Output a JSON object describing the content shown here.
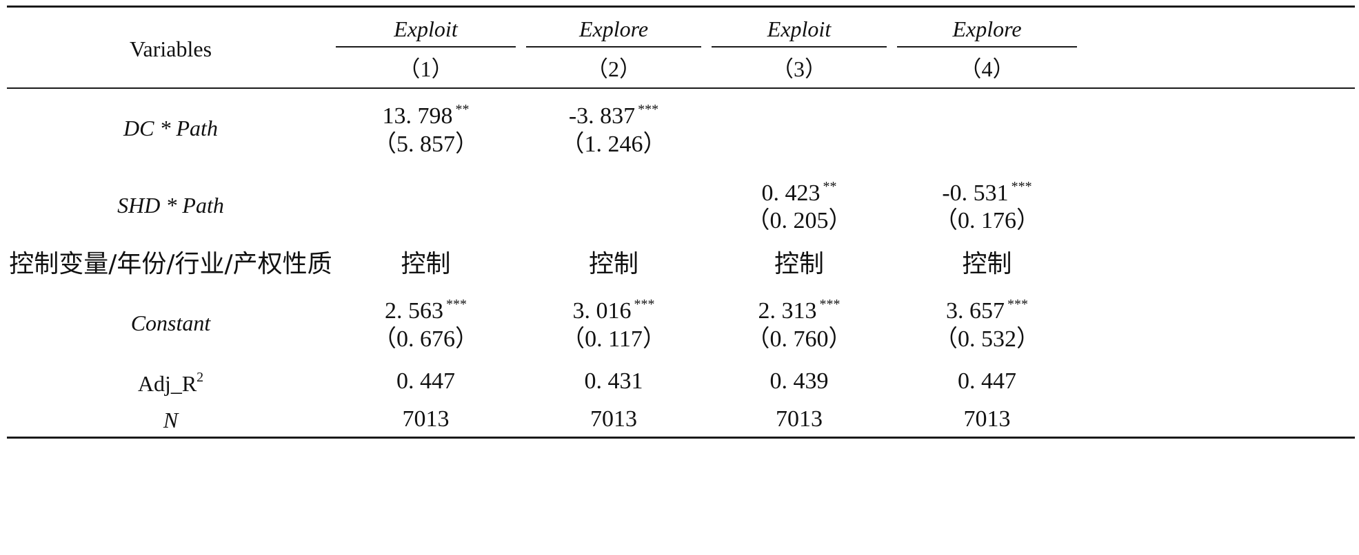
{
  "header": {
    "variables_label": "Variables",
    "groups": [
      "Exploit",
      "Explore",
      "Exploit",
      "Explore"
    ],
    "col_numbers": [
      "（1）",
      "（2）",
      "（3）",
      "（4）"
    ]
  },
  "rows": {
    "dc_path": {
      "label": "DC * Path",
      "coef": [
        "13. 798",
        "-3. 837",
        "",
        ""
      ],
      "stars": [
        "**",
        "***",
        "",
        ""
      ],
      "se": [
        "（5. 857）",
        "（1. 246）",
        "",
        ""
      ]
    },
    "shd_path": {
      "label": "SHD * Path",
      "coef": [
        "",
        "",
        "0. 423",
        "-0. 531"
      ],
      "stars": [
        "",
        "",
        "**",
        "***"
      ],
      "se": [
        "",
        "",
        "（0. 205）",
        "（0. 176）"
      ]
    },
    "controls": {
      "label": "控制变量/年份/行业/产权性质",
      "values": [
        "控制",
        "控制",
        "控制",
        "控制"
      ]
    },
    "constant": {
      "label": "Constant",
      "coef": [
        "2. 563",
        "3. 016",
        "2. 313",
        "3. 657"
      ],
      "stars": [
        "***",
        "***",
        "***",
        "***"
      ],
      "se": [
        "（0. 676）",
        "（0. 117）",
        "（0. 760）",
        "（0. 532）"
      ]
    },
    "adj_r2": {
      "label_main": "Adj_R",
      "label_sup": "2",
      "values": [
        "0. 447",
        "0. 431",
        "0. 439",
        "0. 447"
      ]
    },
    "n": {
      "label": "N",
      "values": [
        "7013",
        "7013",
        "7013",
        "7013"
      ]
    }
  }
}
